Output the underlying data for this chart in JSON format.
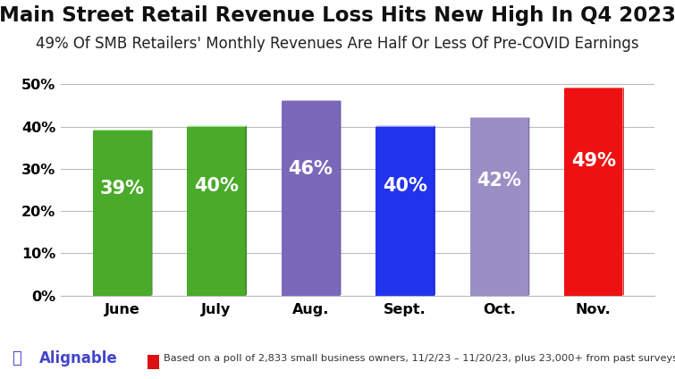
{
  "title": "Main Street Retail Revenue Loss Hits New High In Q4 2023",
  "subtitle": "49% Of SMB Retailers' Monthly Revenues Are Half Or Less Of Pre-COVID Earnings",
  "categories": [
    "June",
    "July",
    "Aug.",
    "Sept.",
    "Oct.",
    "Nov."
  ],
  "values": [
    39,
    40,
    46,
    40,
    42,
    49
  ],
  "bar_colors": [
    "#4aaa2a",
    "#4aaa2a",
    "#7b68bb",
    "#2233ee",
    "#9b8ec4",
    "#ee1111"
  ],
  "bar_top_colors": [
    "#66cc44",
    "#66cc44",
    "#9988dd",
    "#4455ff",
    "#bbaadd",
    "#ff3333"
  ],
  "bar_side_colors": [
    "#2d7a18",
    "#2d7a18",
    "#5a4a99",
    "#1122cc",
    "#7a6aaa",
    "#cc0000"
  ],
  "bar_labels": [
    "39%",
    "40%",
    "46%",
    "40%",
    "42%",
    "49%"
  ],
  "ylim": [
    0,
    52
  ],
  "yticks": [
    0,
    10,
    20,
    30,
    40,
    50
  ],
  "ytick_labels": [
    "0%",
    "10%",
    "20%",
    "30%",
    "40%",
    "50%"
  ],
  "title_fontsize": 16.5,
  "subtitle_fontsize": 12,
  "label_fontsize": 15,
  "tick_fontsize": 11.5,
  "footer_text": "Based on a poll of 2,833 small business owners, 11/2/23 – 11/20/23, plus 23,000+ from past surveys",
  "bg_color": "#ffffff",
  "grid_color": "#bbbbbb",
  "bar_label_color": "#ffffff",
  "alignable_color": "#4444cc",
  "footer_red": "#dd1111",
  "depth": 8
}
